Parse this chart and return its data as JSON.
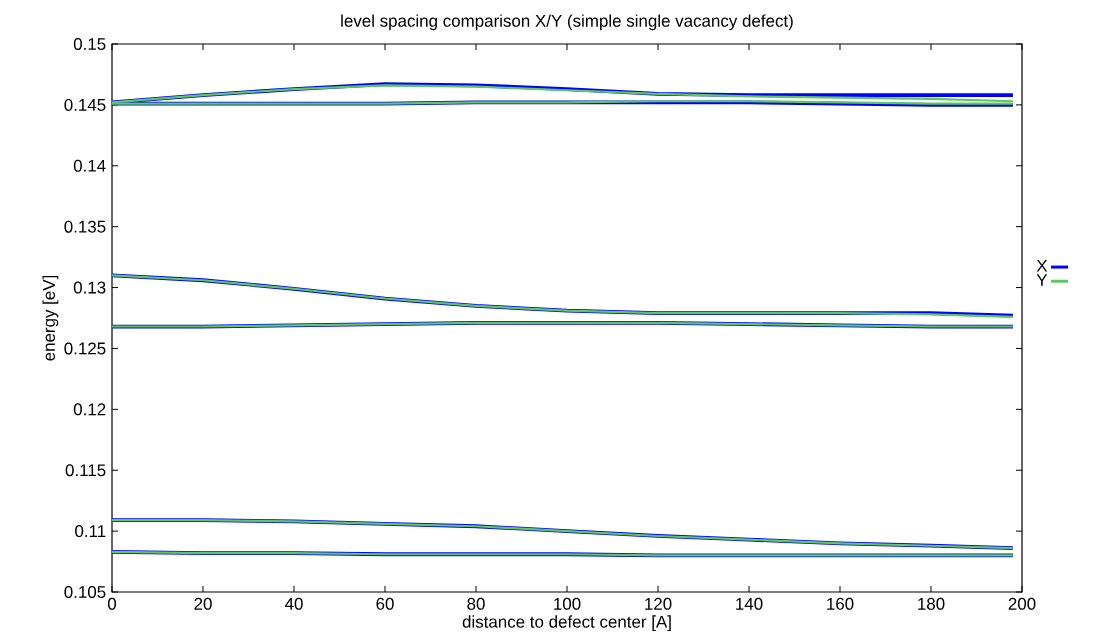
{
  "chart_data": {
    "type": "line",
    "title": "level spacing comparison X/Y (simple single vacancy defect)",
    "xlabel": "distance to defect center [A]",
    "ylabel": "energy [eV]",
    "x": [
      0,
      20,
      40,
      60,
      80,
      100,
      120,
      140,
      160,
      180,
      198
    ],
    "series": [
      {
        "name": "X",
        "color": "#0000ff",
        "values": [
          0.1452,
          0.1458,
          0.1463,
          0.1467,
          0.1466,
          0.1463,
          0.1459,
          0.1458,
          0.1458,
          0.1458,
          0.1458
        ]
      },
      {
        "color": "#0000ff",
        "values": [
          0.1451,
          0.1451,
          0.1451,
          0.1451,
          0.1452,
          0.1452,
          0.1452,
          0.1452,
          0.1451,
          0.145,
          0.145
        ]
      },
      {
        "color": "#0000ff",
        "values": [
          0.131,
          0.1306,
          0.1299,
          0.1291,
          0.1285,
          0.1281,
          0.1279,
          0.1279,
          0.1279,
          0.1279,
          0.1277
        ]
      },
      {
        "color": "#0000ff",
        "values": [
          0.1268,
          0.1268,
          0.1269,
          0.127,
          0.1271,
          0.1271,
          0.1271,
          0.127,
          0.1269,
          0.1268,
          0.1268
        ]
      },
      {
        "color": "#0000ff",
        "values": [
          0.1109,
          0.1109,
          0.1108,
          0.1106,
          0.1104,
          0.11,
          0.1096,
          0.1093,
          0.109,
          0.1088,
          0.1086
        ]
      },
      {
        "color": "#0000ff",
        "values": [
          0.1083,
          0.1082,
          0.1082,
          0.1081,
          0.1081,
          0.1081,
          0.108,
          0.108,
          0.108,
          0.108,
          0.108
        ]
      },
      {
        "name": "Y",
        "color": "#5ec85e",
        "values": [
          0.1452,
          0.1458,
          0.1463,
          0.1466,
          0.1465,
          0.1462,
          0.1459,
          0.1457,
          0.1456,
          0.1455,
          0.1453
        ]
      },
      {
        "color": "#5ec85e",
        "values": [
          0.1451,
          0.1451,
          0.1451,
          0.1451,
          0.1452,
          0.1452,
          0.1453,
          0.1453,
          0.1452,
          0.1451,
          0.1451
        ]
      },
      {
        "color": "#5ec85e",
        "values": [
          0.131,
          0.1306,
          0.1299,
          0.1291,
          0.1285,
          0.1281,
          0.1279,
          0.1279,
          0.1279,
          0.1278,
          0.1276
        ]
      },
      {
        "color": "#5ec85e",
        "values": [
          0.1268,
          0.1268,
          0.1269,
          0.127,
          0.1271,
          0.1271,
          0.1271,
          0.127,
          0.1269,
          0.1268,
          0.1268
        ]
      },
      {
        "color": "#5ec85e",
        "values": [
          0.1109,
          0.1109,
          0.1108,
          0.1106,
          0.1104,
          0.11,
          0.1096,
          0.1093,
          0.109,
          0.1088,
          0.1086
        ]
      },
      {
        "color": "#5ec85e",
        "values": [
          0.1083,
          0.1082,
          0.1082,
          0.1081,
          0.1081,
          0.1081,
          0.108,
          0.108,
          0.108,
          0.108,
          0.108
        ]
      }
    ],
    "xlim": [
      0,
      200
    ],
    "ylim": [
      0.105,
      0.15
    ],
    "xticks": [
      0,
      20,
      40,
      60,
      80,
      100,
      120,
      140,
      160,
      180,
      200
    ],
    "yticks": [
      0.105,
      0.11,
      0.115,
      0.12,
      0.125,
      0.13,
      0.135,
      0.14,
      0.145,
      0.15
    ],
    "grid": false,
    "legend": "right",
    "marker": "none",
    "line_style": "solid"
  }
}
